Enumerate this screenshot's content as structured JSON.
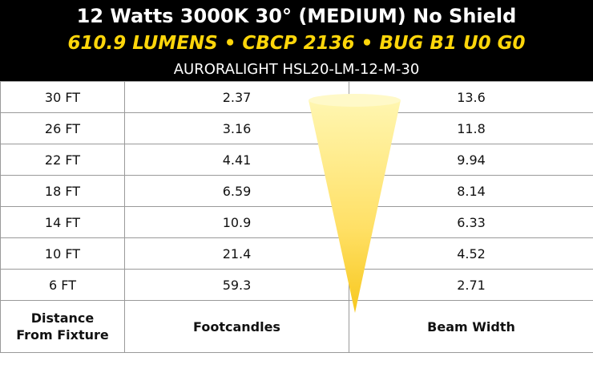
{
  "header": {
    "title": "12 Watts 3000K 30° (MEDIUM) No Shield",
    "subtitle": "610.9 LUMENS • CBCP 2136 • BUG B1 U0 G0",
    "model": "AURORALIGHT HSL20-LM-12-M-30"
  },
  "table": {
    "rows": [
      [
        "30 FT",
        2.37,
        13.6
      ],
      [
        "26 FT",
        3.16,
        11.8
      ],
      [
        "22 FT",
        4.41,
        9.94
      ],
      [
        "18 FT",
        6.59,
        8.14
      ],
      [
        "14 FT",
        10.9,
        6.33
      ],
      [
        "10 FT",
        21.4,
        4.52
      ],
      [
        "6 FT",
        59.3,
        2.71
      ]
    ],
    "footer": [
      "Distance From Fixture",
      "Footcandles",
      "Beam Width"
    ]
  }
}
